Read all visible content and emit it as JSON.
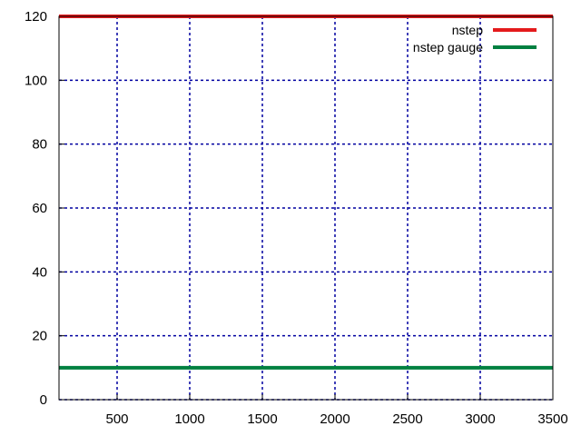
{
  "chart_data": {
    "type": "line",
    "title": "",
    "xlabel": "",
    "ylabel": "",
    "xlim": [
      100,
      3500
    ],
    "ylim": [
      0,
      120
    ],
    "x_ticks": [
      500,
      1000,
      1500,
      2000,
      2500,
      3000,
      3500
    ],
    "y_ticks": [
      0,
      20,
      40,
      60,
      80,
      100,
      120
    ],
    "grid": true,
    "legend_position": "top-right",
    "series": [
      {
        "name": "nstep",
        "color": "#e41a1c",
        "x": [
          100,
          3500
        ],
        "y": [
          120,
          120
        ]
      },
      {
        "name": "nstep gauge",
        "color": "#008040",
        "x": [
          100,
          3500
        ],
        "y": [
          10,
          10
        ]
      }
    ],
    "grid_color": "#0000a0"
  }
}
